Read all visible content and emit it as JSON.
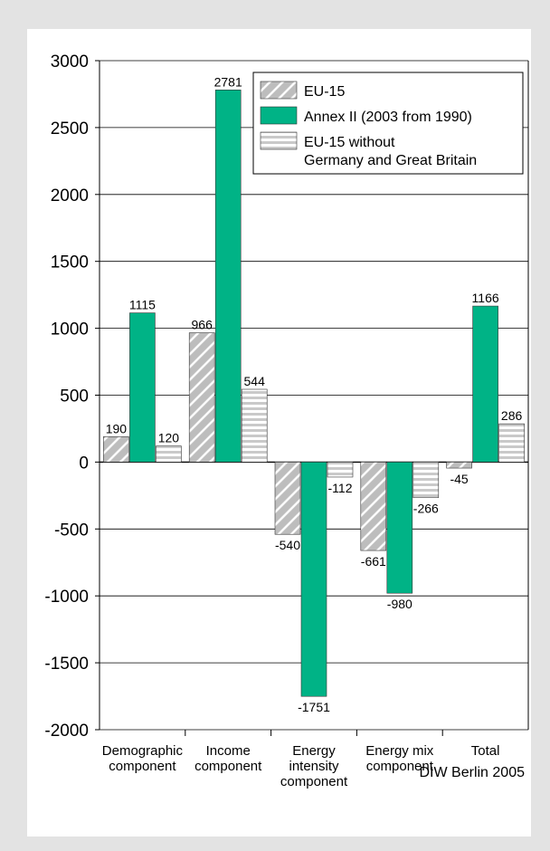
{
  "chart_data": {
    "type": "bar",
    "title": "",
    "xlabel": "",
    "ylabel": "",
    "ylim": [
      -2000,
      3000
    ],
    "yticks": [
      "3000",
      "2500",
      "2000",
      "1500",
      "1000",
      "500",
      "0",
      "-500",
      "-1000",
      "-1500",
      "-2000"
    ],
    "grid": true,
    "legend_position": "top-right",
    "categories": [
      [
        "Demographic",
        "component"
      ],
      [
        "Income",
        "component"
      ],
      [
        "Energy",
        "intensity",
        "component"
      ],
      [
        "Energy mix",
        "component"
      ],
      [
        "Total"
      ]
    ],
    "series": [
      {
        "name": "EU-15",
        "values": [
          190,
          966,
          -540,
          -661,
          -45
        ],
        "color": "#bdbdbd",
        "pattern": "diagonal"
      },
      {
        "name": "Annex II (2003 from 1990)",
        "values": [
          1115,
          2781,
          -1751,
          -980,
          1166
        ],
        "color": "#00b386",
        "pattern": "solid"
      },
      {
        "name": "EU-15 without\nGermany and Great Britain",
        "values": [
          120,
          544,
          -112,
          -266,
          286
        ],
        "color": "#d6d6d6",
        "pattern": "horizontal"
      }
    ],
    "data_labels": [
      [
        "190",
        "966",
        "-540",
        "-661",
        "-45"
      ],
      [
        "1115",
        "2781",
        "-1751",
        "-980",
        "1166"
      ],
      [
        "120",
        "544",
        "-112",
        "-266",
        "286"
      ]
    ]
  },
  "source": "DIW Berlin 2005"
}
